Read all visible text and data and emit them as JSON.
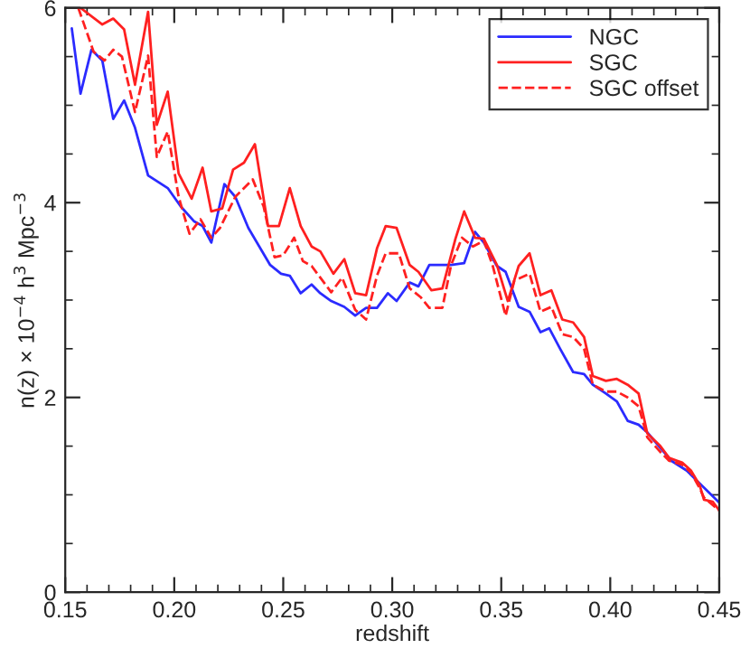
{
  "chart_data": {
    "type": "line",
    "xlabel": "redshift",
    "ylabel": "n(z) × 10$^{−4}$ h$^{3}$ Mpc$^{−3}$",
    "xlim": [
      0.15,
      0.45
    ],
    "ylim": [
      0,
      6
    ],
    "xticks": [
      {
        "value": 0.15,
        "label": "0.15"
      },
      {
        "value": 0.2,
        "label": "0.20"
      },
      {
        "value": 0.25,
        "label": "0.25"
      },
      {
        "value": 0.3,
        "label": "0.30"
      },
      {
        "value": 0.35,
        "label": "0.35"
      },
      {
        "value": 0.4,
        "label": "0.40"
      },
      {
        "value": 0.45,
        "label": "0.45"
      }
    ],
    "yticks": [
      0,
      2,
      4,
      6
    ],
    "grid": false,
    "legend": "top right",
    "marker": "none",
    "series": [
      {
        "name": "NGC",
        "color": "#2b2bff",
        "line_style": "solid",
        "x": [
          0.153,
          0.157,
          0.162,
          0.167,
          0.172,
          0.177,
          0.182,
          0.188,
          0.197,
          0.203,
          0.209,
          0.213,
          0.217,
          0.223,
          0.228,
          0.234,
          0.244,
          0.249,
          0.253,
          0.258,
          0.263,
          0.267,
          0.272,
          0.278,
          0.283,
          0.288,
          0.293,
          0.298,
          0.302,
          0.308,
          0.312,
          0.317,
          0.327,
          0.333,
          0.338,
          0.342,
          0.348,
          0.352,
          0.358,
          0.363,
          0.368,
          0.372,
          0.377,
          0.383,
          0.388,
          0.392,
          0.398,
          0.403,
          0.408,
          0.413,
          0.417,
          0.428,
          0.435,
          0.44,
          0.445,
          0.45
        ],
        "values": [
          5.79,
          5.12,
          5.57,
          5.46,
          4.86,
          5.05,
          4.77,
          4.28,
          4.15,
          3.96,
          3.81,
          3.76,
          3.59,
          4.19,
          4.06,
          3.74,
          3.36,
          3.27,
          3.25,
          3.07,
          3.16,
          3.07,
          2.99,
          2.93,
          2.84,
          2.92,
          2.92,
          3.07,
          2.99,
          3.18,
          3.14,
          3.36,
          3.36,
          3.38,
          3.7,
          3.59,
          3.35,
          3.29,
          2.93,
          2.88,
          2.67,
          2.71,
          2.5,
          2.26,
          2.24,
          2.13,
          2.04,
          1.96,
          1.76,
          1.72,
          1.64,
          1.35,
          1.25,
          1.14,
          1.03,
          0.92
        ]
      },
      {
        "name": "SGC",
        "color": "#ff2020",
        "line_style": "solid",
        "x": [
          0.157,
          0.167,
          0.172,
          0.177,
          0.182,
          0.188,
          0.192,
          0.197,
          0.202,
          0.208,
          0.213,
          0.217,
          0.222,
          0.227,
          0.232,
          0.237,
          0.243,
          0.248,
          0.253,
          0.258,
          0.263,
          0.267,
          0.273,
          0.278,
          0.283,
          0.288,
          0.293,
          0.297,
          0.302,
          0.308,
          0.312,
          0.318,
          0.323,
          0.329,
          0.333,
          0.338,
          0.342,
          0.348,
          0.353,
          0.358,
          0.363,
          0.368,
          0.373,
          0.378,
          0.383,
          0.388,
          0.392,
          0.398,
          0.403,
          0.408,
          0.413,
          0.417,
          0.423,
          0.427,
          0.433,
          0.437,
          0.441,
          0.443,
          0.447,
          0.45
        ],
        "values": [
          6.0,
          5.83,
          5.89,
          5.78,
          5.21,
          5.96,
          4.8,
          5.14,
          4.3,
          4.04,
          4.36,
          3.91,
          3.94,
          4.34,
          4.41,
          4.6,
          3.76,
          3.76,
          4.15,
          3.76,
          3.55,
          3.5,
          3.27,
          3.42,
          3.07,
          3.05,
          3.53,
          3.76,
          3.74,
          3.36,
          3.29,
          3.1,
          3.12,
          3.63,
          3.91,
          3.64,
          3.63,
          3.36,
          2.99,
          3.35,
          3.48,
          3.05,
          3.1,
          2.8,
          2.77,
          2.62,
          2.22,
          2.17,
          2.19,
          2.13,
          2.04,
          1.63,
          1.5,
          1.38,
          1.33,
          1.25,
          1.1,
          0.95,
          0.93,
          0.84
        ]
      },
      {
        "name": "SGC offset",
        "color": "#ff2020",
        "line_style": "dashed",
        "x": [
          0.156,
          0.163,
          0.168,
          0.172,
          0.176,
          0.182,
          0.188,
          0.192,
          0.197,
          0.202,
          0.207,
          0.212,
          0.217,
          0.221,
          0.228,
          0.236,
          0.241,
          0.246,
          0.25,
          0.255,
          0.259,
          0.263,
          0.267,
          0.272,
          0.277,
          0.283,
          0.288,
          0.293,
          0.297,
          0.303,
          0.308,
          0.313,
          0.317,
          0.323,
          0.327,
          0.332,
          0.337,
          0.342,
          0.346,
          0.352,
          0.356,
          0.363,
          0.368,
          0.373,
          0.378,
          0.383,
          0.388,
          0.392,
          0.398,
          0.403,
          0.408,
          0.413,
          0.417,
          0.423,
          0.427,
          0.433,
          0.437,
          0.441,
          0.443,
          0.45
        ],
        "values": [
          6.0,
          5.55,
          5.46,
          5.57,
          5.5,
          4.93,
          5.51,
          4.47,
          4.73,
          4.06,
          3.68,
          3.83,
          3.64,
          3.74,
          4.06,
          4.24,
          3.96,
          3.44,
          3.46,
          3.64,
          3.4,
          3.35,
          3.23,
          3.08,
          3.23,
          2.9,
          2.8,
          3.25,
          3.48,
          3.48,
          3.12,
          3.03,
          2.92,
          2.92,
          3.36,
          3.64,
          3.55,
          3.61,
          3.36,
          2.84,
          3.2,
          3.27,
          2.88,
          2.93,
          2.65,
          2.62,
          2.5,
          2.13,
          2.06,
          2.06,
          2.0,
          1.91,
          1.59,
          1.44,
          1.35,
          1.31,
          1.23,
          1.07,
          0.97,
          0.84
        ]
      }
    ]
  }
}
